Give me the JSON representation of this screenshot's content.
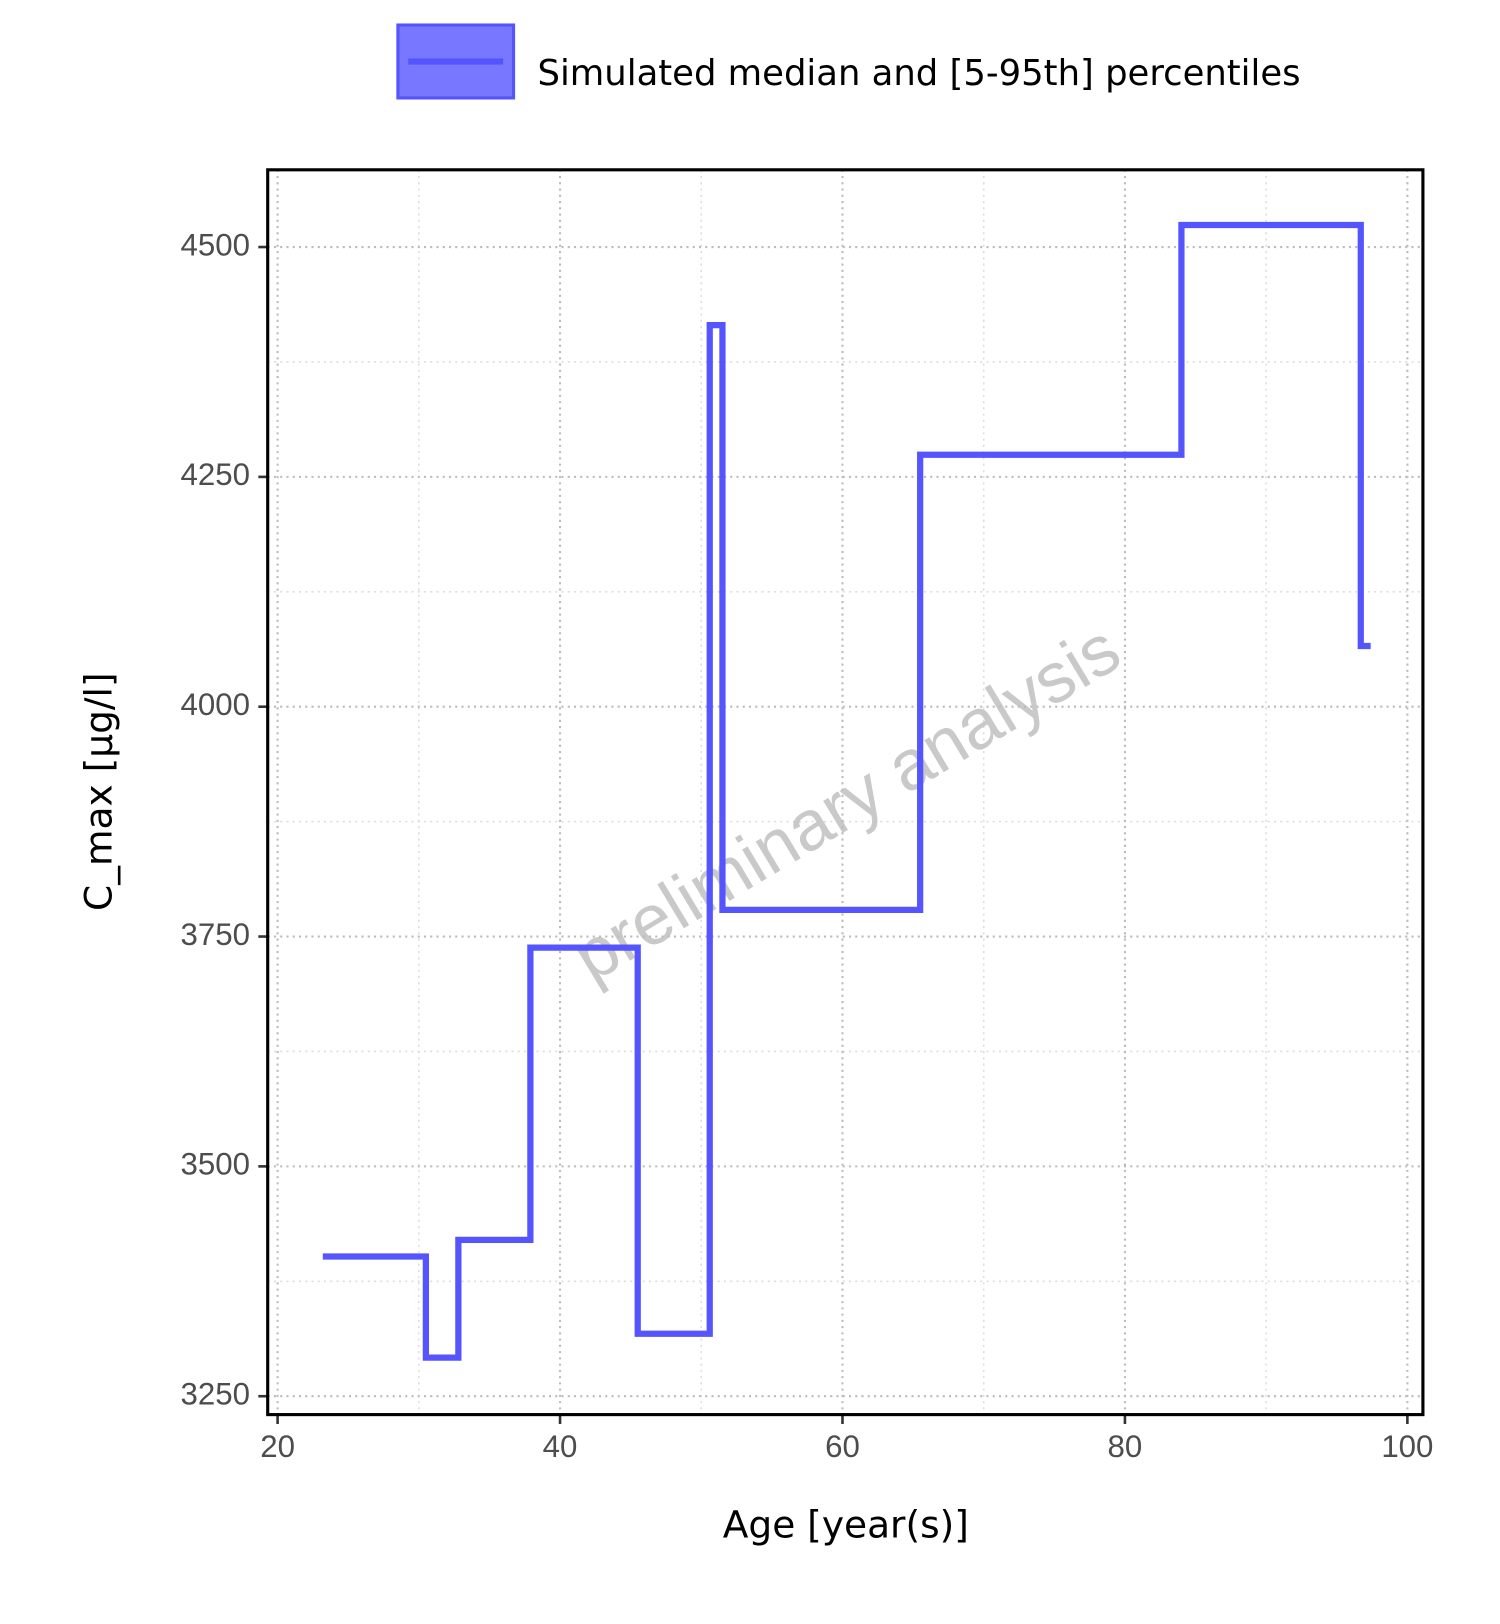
{
  "chart_data": {
    "type": "line",
    "step": true,
    "xlabel": "Age [year(s)]",
    "ylabel": "C_max [µg/l]",
    "watermark": "preliminary analysis",
    "x": [
      23.2,
      30.5,
      32.8,
      37.9,
      45.5,
      50.6,
      51.5,
      65.5,
      84.0,
      96.7,
      97.4
    ],
    "series": [
      {
        "name": "Simulated median and [5-95th] percentiles",
        "color": "#5555ff",
        "values": [
          3402,
          3292,
          3420,
          3738,
          3318,
          4415,
          3779,
          4274,
          4524,
          4066,
          4066
        ]
      }
    ],
    "xlim": [
      19.3,
      101.1
    ],
    "xticks": [
      20,
      40,
      60,
      80,
      100
    ],
    "minor_xticks": [
      30,
      50,
      70,
      90
    ],
    "ylim": [
      3230,
      4584
    ],
    "yticks": [
      3250,
      3500,
      3750,
      4000,
      4250,
      4500
    ],
    "minor_yticks": [
      3375,
      3625,
      3875,
      4125,
      4375
    ],
    "grid": true,
    "legend": "top"
  }
}
